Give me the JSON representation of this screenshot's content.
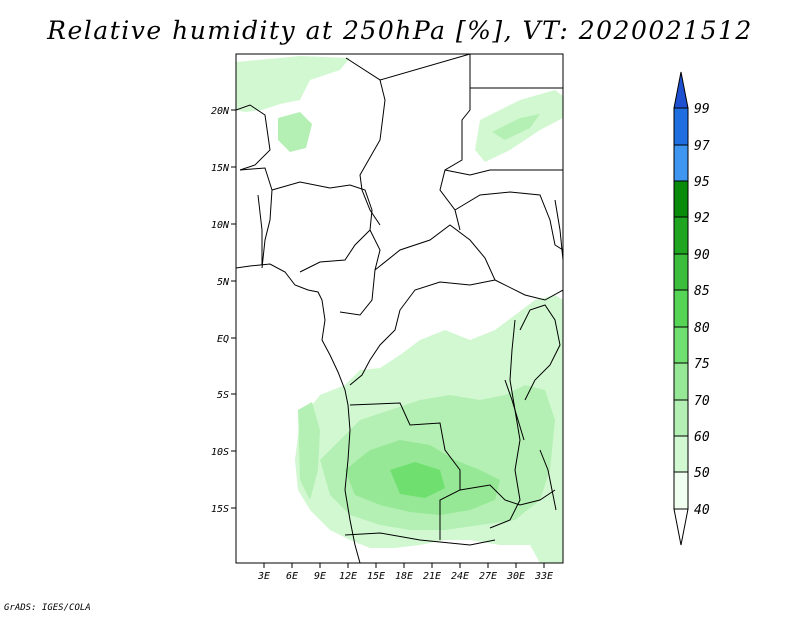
{
  "title": "Relative humidity at 250hPa [%], VT: 2020021512",
  "credit": "GrADS: IGES/COLA",
  "map": {
    "lat_ticks": [
      "20N",
      "15N",
      "10N",
      "5N",
      "EQ",
      "5S",
      "10S",
      "15S"
    ],
    "lon_ticks": [
      "3E",
      "6E",
      "9E",
      "12E",
      "15E",
      "18E",
      "21E",
      "24E",
      "27E",
      "30E",
      "33E"
    ]
  },
  "colorbar": {
    "labels": [
      "99",
      "97",
      "95",
      "92",
      "90",
      "85",
      "80",
      "75",
      "70",
      "60",
      "50",
      "40"
    ],
    "colors": [
      "#1e50d2",
      "#1f6fe0",
      "#3e96f0",
      "#0a8a0a",
      "#1fa51f",
      "#3cbd3c",
      "#56d456",
      "#6fe06f",
      "#96e896",
      "#b4f0b4",
      "#d2f8d2",
      "#f0fff0"
    ]
  }
}
